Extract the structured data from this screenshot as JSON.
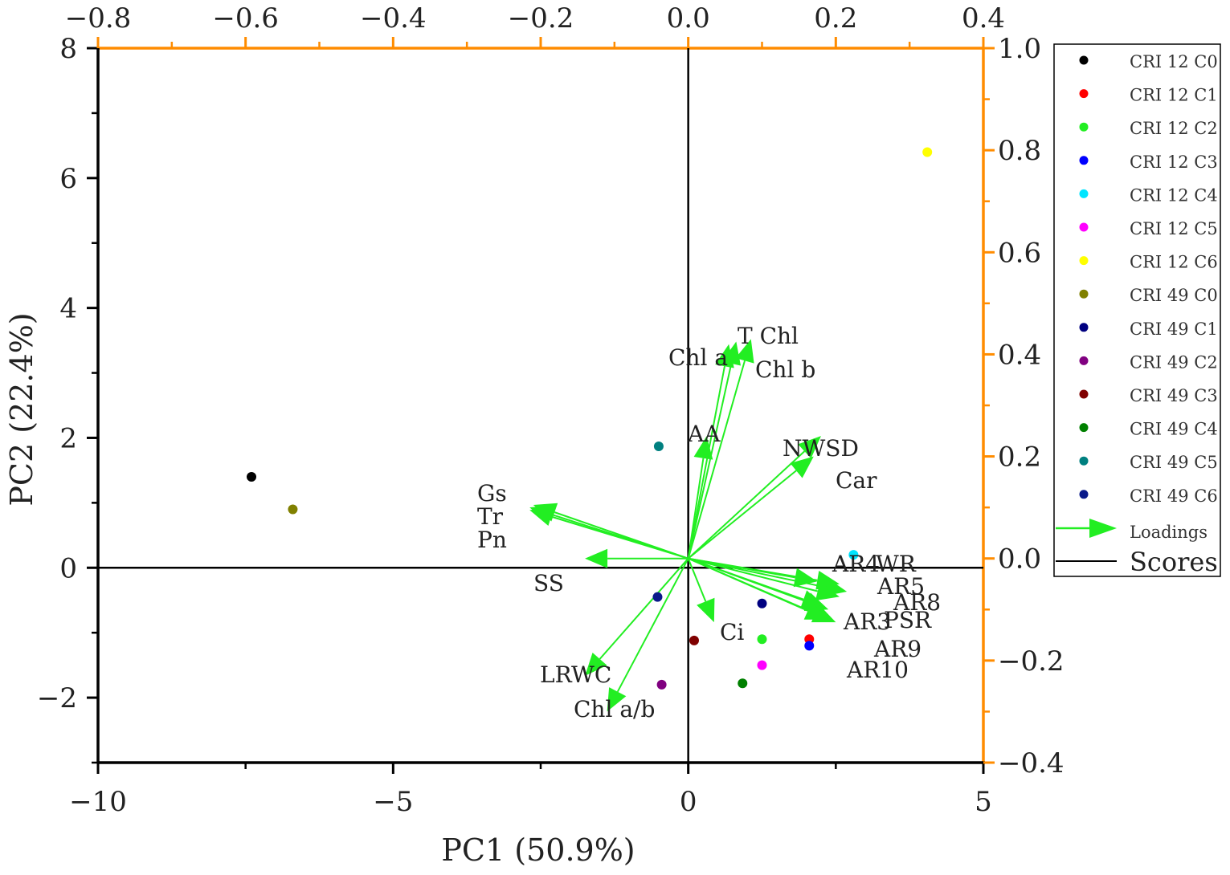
{
  "colors": {
    "top_right_axes": "#ff8c00",
    "bottom_left_axes": "#000000",
    "loadings": "#22ee22"
  },
  "chart_data": {
    "type": "scatter",
    "subtype": "biplot",
    "xlabel": "PC1 (50.9%)",
    "ylabel": "PC2 (22.4%)",
    "scores_axes": {
      "xlim": [
        -10,
        5
      ],
      "ylim": [
        -3,
        8
      ],
      "xticks": [
        -10,
        -5,
        0,
        5
      ],
      "yticks": [
        -2,
        0,
        2,
        4,
        6,
        8
      ],
      "xtick_labels": [
        "−10",
        "−5",
        "0",
        "5"
      ],
      "ytick_labels": [
        "−2",
        "0",
        "2",
        "4",
        "6",
        "8"
      ]
    },
    "loadings_axes": {
      "xlim": [
        -0.8,
        0.4
      ],
      "ylim": [
        -0.4,
        1.0
      ],
      "xticks": [
        -0.8,
        -0.6,
        -0.4,
        -0.2,
        0.0,
        0.2,
        0.4
      ],
      "yticks": [
        -0.4,
        -0.2,
        0.0,
        0.2,
        0.4,
        0.6,
        0.8,
        1.0
      ],
      "xtick_labels": [
        "−0.8",
        "−0.6",
        "−0.4",
        "−0.2",
        "0.0",
        "0.2",
        "0.4"
      ],
      "ytick_labels": [
        "−0.4",
        "−0.2",
        "0.0",
        "0.2",
        "0.4",
        "0.6",
        "0.8",
        "1.0"
      ]
    },
    "scores": [
      {
        "name": "CRI 12 C0",
        "color": "#000000",
        "x": -7.4,
        "y": 1.4
      },
      {
        "name": "CRI 12 C1",
        "color": "#ff0000",
        "x": 2.05,
        "y": -1.1
      },
      {
        "name": "CRI 12 C2",
        "color": "#22ee22",
        "x": 1.25,
        "y": -1.1
      },
      {
        "name": "CRI 12 C3",
        "color": "#0000ff",
        "x": 2.05,
        "y": -1.2
      },
      {
        "name": "CRI 12 C4",
        "color": "#00e5ff",
        "x": 2.8,
        "y": 0.2
      },
      {
        "name": "CRI 12 C5",
        "color": "#ff00ff",
        "x": 1.25,
        "y": -1.5
      },
      {
        "name": "CRI 12 C6",
        "color": "#ffff00",
        "x": 4.05,
        "y": 6.4
      },
      {
        "name": "CRI 49 C0",
        "color": "#808000",
        "x": -6.7,
        "y": 0.9
      },
      {
        "name": "CRI 49 C1",
        "color": "#000080",
        "x": 1.25,
        "y": -0.55
      },
      {
        "name": "CRI 49 C2",
        "color": "#800080",
        "x": -0.45,
        "y": -1.8
      },
      {
        "name": "CRI 49 C3",
        "color": "#800000",
        "x": 0.1,
        "y": -1.12
      },
      {
        "name": "CRI 49 C4",
        "color": "#008000",
        "x": 0.92,
        "y": -1.78
      },
      {
        "name": "CRI 49 C5",
        "color": "#008080",
        "x": -0.5,
        "y": 1.87
      },
      {
        "name": "CRI 49 C6",
        "color": "#0a1a8a",
        "x": -0.52,
        "y": -0.45
      }
    ],
    "loadings": [
      {
        "name": "T Chl",
        "x": 0.065,
        "y": 0.425
      },
      {
        "name": "Chl a",
        "x": 0.055,
        "y": 0.42
      },
      {
        "name": "Chl b",
        "x": 0.085,
        "y": 0.43
      },
      {
        "name": "AA",
        "x": 0.025,
        "y": 0.24
      },
      {
        "name": "NWSD",
        "x": 0.17,
        "y": 0.2
      },
      {
        "name": "Car",
        "x": 0.18,
        "y": 0.24
      },
      {
        "name": "Gs",
        "x": -0.21,
        "y": 0.105
      },
      {
        "name": "Tr",
        "x": -0.215,
        "y": 0.1
      },
      {
        "name": "Pn",
        "x": -0.215,
        "y": 0.095
      },
      {
        "name": "SS",
        "x": -0.14,
        "y": 0.0
      },
      {
        "name": "AR4",
        "x": 0.175,
        "y": -0.045
      },
      {
        "name": "WR",
        "x": 0.205,
        "y": -0.05
      },
      {
        "name": "AR5",
        "x": 0.215,
        "y": -0.065
      },
      {
        "name": "AR8",
        "x": 0.205,
        "y": -0.075
      },
      {
        "name": "AR3",
        "x": 0.185,
        "y": -0.095
      },
      {
        "name": "PSR",
        "x": 0.19,
        "y": -0.1
      },
      {
        "name": "AR9",
        "x": 0.2,
        "y": -0.125
      },
      {
        "name": "AR10",
        "x": 0.19,
        "y": -0.12
      },
      {
        "name": "Ci",
        "x": 0.035,
        "y": -0.125
      },
      {
        "name": "LRWC",
        "x": -0.14,
        "y": -0.23
      },
      {
        "name": "Chl a/b",
        "x": -0.11,
        "y": -0.3
      }
    ],
    "loading_labels": [
      {
        "text": "T Chl"
      },
      {
        "text": "Chl a"
      },
      {
        "text": "Chl b"
      },
      {
        "text": "AA"
      },
      {
        "text": "NWSD"
      },
      {
        "text": "Car"
      },
      {
        "text": "Gs"
      },
      {
        "text": "Tr"
      },
      {
        "text": "Pn"
      },
      {
        "text": "SS"
      },
      {
        "text": "AR4"
      },
      {
        "text": "WR"
      },
      {
        "text": "AR5"
      },
      {
        "text": "AR8"
      },
      {
        "text": "AR3"
      },
      {
        "text": "PSR"
      },
      {
        "text": "AR9"
      },
      {
        "text": "AR10"
      },
      {
        "text": "Ci"
      },
      {
        "text": "LRWC"
      },
      {
        "text": "Chl a/b"
      }
    ],
    "legend": {
      "position": "right",
      "loadings_label": "Loadings",
      "scores_label": "Scores"
    }
  }
}
